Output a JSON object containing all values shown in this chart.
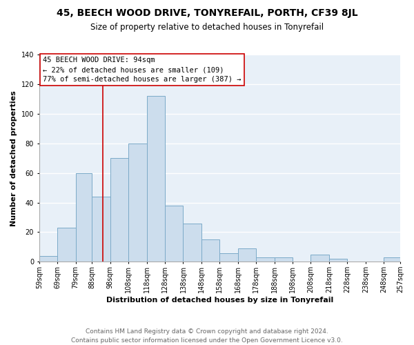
{
  "title": "45, BEECH WOOD DRIVE, TONYREFAIL, PORTH, CF39 8JL",
  "subtitle": "Size of property relative to detached houses in Tonyrefail",
  "xlabel": "Distribution of detached houses by size in Tonyrefail",
  "ylabel": "Number of detached properties",
  "bin_edges": [
    59,
    69,
    79,
    88,
    98,
    108,
    118,
    128,
    138,
    148,
    158,
    168,
    178,
    188,
    198,
    208,
    218,
    228,
    238,
    248,
    257
  ],
  "bar_heights": [
    4,
    23,
    60,
    44,
    70,
    80,
    112,
    38,
    26,
    15,
    6,
    9,
    3,
    3,
    0,
    5,
    2,
    0,
    0,
    3
  ],
  "bar_color": "#ccdded",
  "bar_edgecolor": "#7baac8",
  "reference_line_x": 94,
  "reference_line_color": "#cc0000",
  "ylim": [
    0,
    140
  ],
  "yticks": [
    0,
    20,
    40,
    60,
    80,
    100,
    120,
    140
  ],
  "xlabels": [
    "59sqm",
    "69sqm",
    "79sqm",
    "88sqm",
    "98sqm",
    "108sqm",
    "118sqm",
    "128sqm",
    "138sqm",
    "148sqm",
    "158sqm",
    "168sqm",
    "178sqm",
    "188sqm",
    "198sqm",
    "208sqm",
    "218sqm",
    "228sqm",
    "238sqm",
    "248sqm",
    "257sqm"
  ],
  "annotation_title": "45 BEECH WOOD DRIVE: 94sqm",
  "annotation_line1": "← 22% of detached houses are smaller (109)",
  "annotation_line2": "77% of semi-detached houses are larger (387) →",
  "annotation_box_color": "#ffffff",
  "annotation_box_edgecolor": "#cc0000",
  "footer_line1": "Contains HM Land Registry data © Crown copyright and database right 2024.",
  "footer_line2": "Contains public sector information licensed under the Open Government Licence v3.0.",
  "plot_bg_color": "#e8f0f8",
  "fig_bg_color": "#ffffff",
  "grid_color": "#ffffff",
  "title_fontsize": 10,
  "subtitle_fontsize": 8.5,
  "axis_label_fontsize": 8,
  "tick_fontsize": 7,
  "footer_fontsize": 6.5,
  "annotation_fontsize": 7.5
}
